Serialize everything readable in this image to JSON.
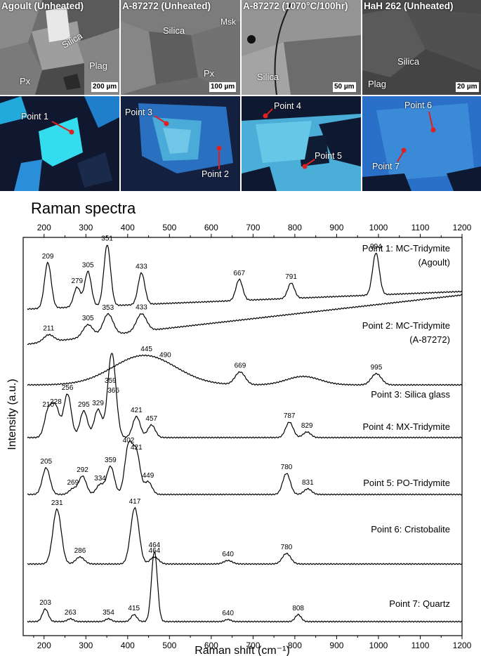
{
  "images": {
    "titles": [
      "Agoult (Unheated)",
      "A-87272 (Unheated)",
      "A-87272 (1070°C/100hr)",
      "HaH 262 (Unheated)"
    ],
    "mineral_labels": {
      "p1": [
        "Silica",
        "Px",
        "Plag"
      ],
      "p2": [
        "Silica",
        "Msk",
        "Px"
      ],
      "p3": [
        "Silica"
      ],
      "p4": [
        "Silica",
        "Plag"
      ]
    },
    "scale_bars": [
      "200 µm",
      "100 µm",
      "50 µm",
      "20 µm"
    ],
    "points": {
      "p1": "Point 1",
      "p2": "Point 2",
      "p3": "Point 3",
      "p4": "Point 4",
      "p5": "Point 5",
      "p6": "Point 6",
      "p7": "Point 7"
    },
    "point_marker_color": "#e02020"
  },
  "heading": "Raman spectra",
  "chart_data": {
    "type": "line",
    "xlabel": "Raman shift (cm⁻¹)",
    "ylabel": "Intensity (a.u.)",
    "xlim": [
      150,
      1200
    ],
    "x_ticks": [
      200,
      300,
      400,
      500,
      600,
      700,
      800,
      900,
      1000,
      1100,
      1200
    ],
    "grid": false,
    "series": [
      {
        "name": "Point 1: MC-Tridymite",
        "name2": "(Agoult)",
        "peaks": [
          {
            "x": 209,
            "label": "209"
          },
          {
            "x": 279,
            "label": "279"
          },
          {
            "x": 305,
            "label": "305"
          },
          {
            "x": 351,
            "label": "351"
          },
          {
            "x": 433,
            "label": "433"
          },
          {
            "x": 667,
            "label": "667"
          },
          {
            "x": 791,
            "label": "791"
          },
          {
            "x": 994,
            "label": "994"
          }
        ]
      },
      {
        "name": "Point 2: MC-Tridymite",
        "name2": "(A-87272)",
        "peaks": [
          {
            "x": 211,
            "label": "211"
          },
          {
            "x": 305,
            "label": "305"
          },
          {
            "x": 353,
            "label": "353"
          },
          {
            "x": 433,
            "label": "433"
          }
        ]
      },
      {
        "name": "Point 3: Silica glass",
        "peaks": [
          {
            "x": 445,
            "label": "445"
          },
          {
            "x": 490,
            "label": "490"
          },
          {
            "x": 669,
            "label": "669"
          },
          {
            "x": 995,
            "label": "995"
          }
        ]
      },
      {
        "name": "Point 4: MX-Tridymite",
        "peaks": [
          {
            "x": 210,
            "label": "210"
          },
          {
            "x": 228,
            "label": "228"
          },
          {
            "x": 256,
            "label": "256"
          },
          {
            "x": 295,
            "label": "295"
          },
          {
            "x": 329,
            "label": "329"
          },
          {
            "x": 359,
            "label": "359"
          },
          {
            "x": 366,
            "label": "366"
          },
          {
            "x": 421,
            "label": "421"
          },
          {
            "x": 457,
            "label": "457"
          },
          {
            "x": 787,
            "label": "787"
          },
          {
            "x": 829,
            "label": "829"
          }
        ]
      },
      {
        "name": "Point 5: PO-Tridymite",
        "peaks": [
          {
            "x": 205,
            "label": "205"
          },
          {
            "x": 269,
            "label": "269"
          },
          {
            "x": 292,
            "label": "292"
          },
          {
            "x": 334,
            "label": "334"
          },
          {
            "x": 359,
            "label": "359"
          },
          {
            "x": 402,
            "label": "402"
          },
          {
            "x": 421,
            "label": "421"
          },
          {
            "x": 449,
            "label": "449"
          },
          {
            "x": 780,
            "label": "780"
          },
          {
            "x": 831,
            "label": "831"
          }
        ]
      },
      {
        "name": "Point 6: Cristobalite",
        "peaks": [
          {
            "x": 231,
            "label": "231"
          },
          {
            "x": 286,
            "label": "286"
          },
          {
            "x": 417,
            "label": "417"
          },
          {
            "x": 464,
            "label": "464"
          },
          {
            "x": 640,
            "label": "640"
          },
          {
            "x": 780,
            "label": "780"
          }
        ]
      },
      {
        "name": "Point 7: Quartz",
        "peaks": [
          {
            "x": 203,
            "label": "203"
          },
          {
            "x": 263,
            "label": "263"
          },
          {
            "x": 354,
            "label": "354"
          },
          {
            "x": 415,
            "label": "415"
          },
          {
            "x": 464,
            "label": "464"
          },
          {
            "x": 640,
            "label": "640"
          },
          {
            "x": 808,
            "label": "808"
          }
        ]
      }
    ]
  }
}
